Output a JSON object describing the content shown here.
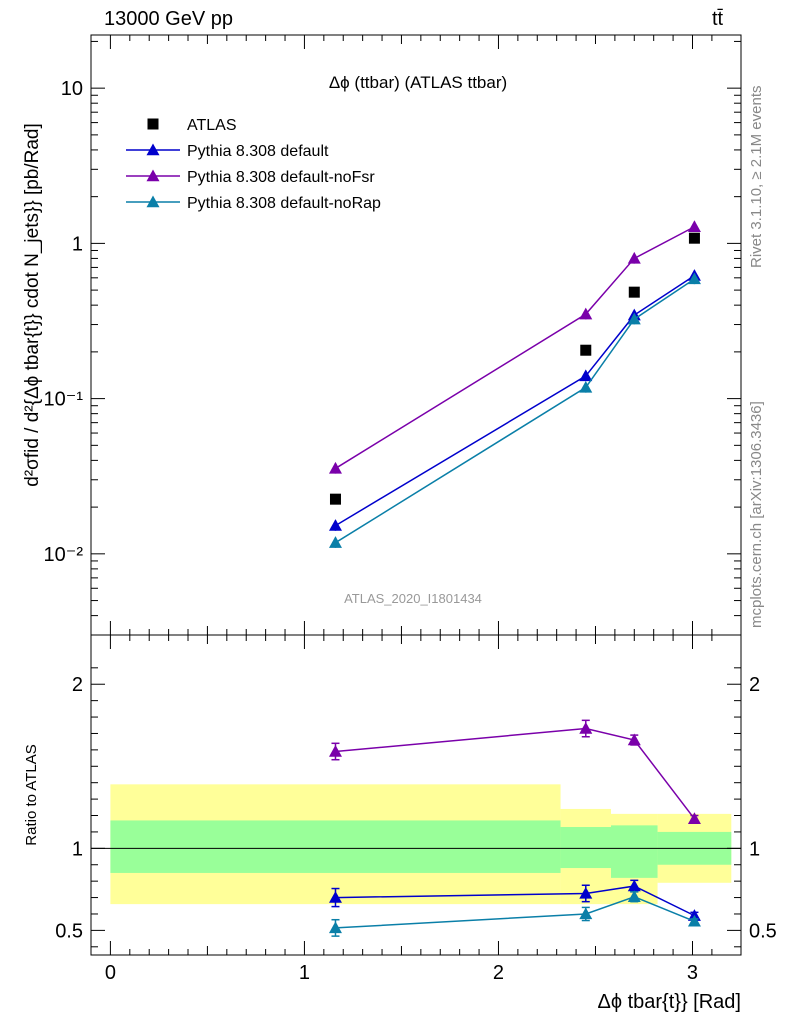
{
  "header": {
    "energy_label": "13000 GeV pp",
    "process_label": "tt̄"
  },
  "side_labels": {
    "rivet": "Rivet 3.1.10, ≥ 2.1M events",
    "mcplots": "mcplots.cern.ch [arXiv:1306.3436]"
  },
  "colors": {
    "atlas": "#000000",
    "default": "#0000cc",
    "noFsr": "#7a00aa",
    "noRap": "#0a7fa8",
    "band_inner": "#99ff99",
    "band_outer": "#ffff99"
  },
  "chart_data": [
    {
      "type": "scatter",
      "title": "Δϕ (ttbar) (ATLAS ttbar)",
      "analysis_label": "ATLAS_2020_I1801434",
      "ylabel": "d²σfid / d²{Δϕ tbar{t}} cdot N_jets}} [pb/Rad]",
      "yscale": "log",
      "ylim": [
        0.003,
        22
      ],
      "xlim": [
        -0.1,
        3.25
      ],
      "y_ticks": [
        "10⁻²",
        "10⁻¹",
        "1",
        "10"
      ],
      "legend_position": "top-left",
      "series": [
        {
          "name": "ATLAS",
          "marker": "square",
          "x": [
            1.16,
            2.45,
            2.7,
            3.01
          ],
          "y": [
            0.0225,
            0.205,
            0.485,
            1.08
          ]
        },
        {
          "name": "Pythia 8.308 default",
          "marker": "triangle",
          "x": [
            1.16,
            2.45,
            2.7,
            3.01
          ],
          "y": [
            0.0152,
            0.14,
            0.345,
            0.62
          ]
        },
        {
          "name": "Pythia 8.308 default-noFsr",
          "marker": "triangle",
          "x": [
            1.16,
            2.45,
            2.7,
            3.01
          ],
          "y": [
            0.0355,
            0.35,
            0.8,
            1.28
          ]
        },
        {
          "name": "Pythia 8.308 default-noRap",
          "marker": "triangle",
          "x": [
            1.16,
            2.45,
            2.7,
            3.01
          ],
          "y": [
            0.0118,
            0.118,
            0.325,
            0.59
          ]
        }
      ]
    },
    {
      "type": "scatter",
      "ylabel": "Ratio to ATLAS",
      "xlabel": "Δϕ tbar{t}} [Rad]",
      "ylim": [
        0.35,
        2.3
      ],
      "xlim": [
        -0.1,
        3.25
      ],
      "x_ticks": [
        "0",
        "1",
        "2",
        "3"
      ],
      "y_ticks": [
        "0.5",
        "1",
        "2"
      ],
      "reference_line": 1,
      "bands": [
        {
          "x_low": 0.0,
          "x_high": 2.32,
          "inner": [
            0.85,
            1.17
          ],
          "outer": [
            0.66,
            1.39
          ]
        },
        {
          "x_low": 2.32,
          "x_high": 2.58,
          "inner": [
            0.88,
            1.13
          ],
          "outer": [
            0.66,
            1.24
          ]
        },
        {
          "x_low": 2.58,
          "x_high": 2.82,
          "inner": [
            0.82,
            1.14
          ],
          "outer": [
            0.66,
            1.21
          ]
        },
        {
          "x_low": 2.82,
          "x_high": 3.2,
          "inner": [
            0.9,
            1.1
          ],
          "outer": [
            0.79,
            1.21
          ]
        }
      ],
      "series": [
        {
          "name": "Pythia 8.308 default",
          "x": [
            1.16,
            2.45,
            2.7,
            3.01
          ],
          "y": [
            0.7,
            0.725,
            0.77,
            0.59
          ],
          "err": [
            0.055,
            0.05,
            0.035,
            0.02
          ]
        },
        {
          "name": "Pythia 8.308 default-noFsr",
          "x": [
            1.16,
            2.45,
            2.7,
            3.01
          ],
          "y": [
            1.59,
            1.73,
            1.66,
            1.18
          ],
          "err": [
            0.05,
            0.05,
            0.03,
            0.02
          ]
        },
        {
          "name": "Pythia 8.308 default-noRap",
          "x": [
            1.16,
            2.45,
            2.7,
            3.01
          ],
          "y": [
            0.515,
            0.6,
            0.705,
            0.555
          ],
          "err": [
            0.05,
            0.04,
            0.03,
            0.015
          ]
        }
      ]
    }
  ]
}
